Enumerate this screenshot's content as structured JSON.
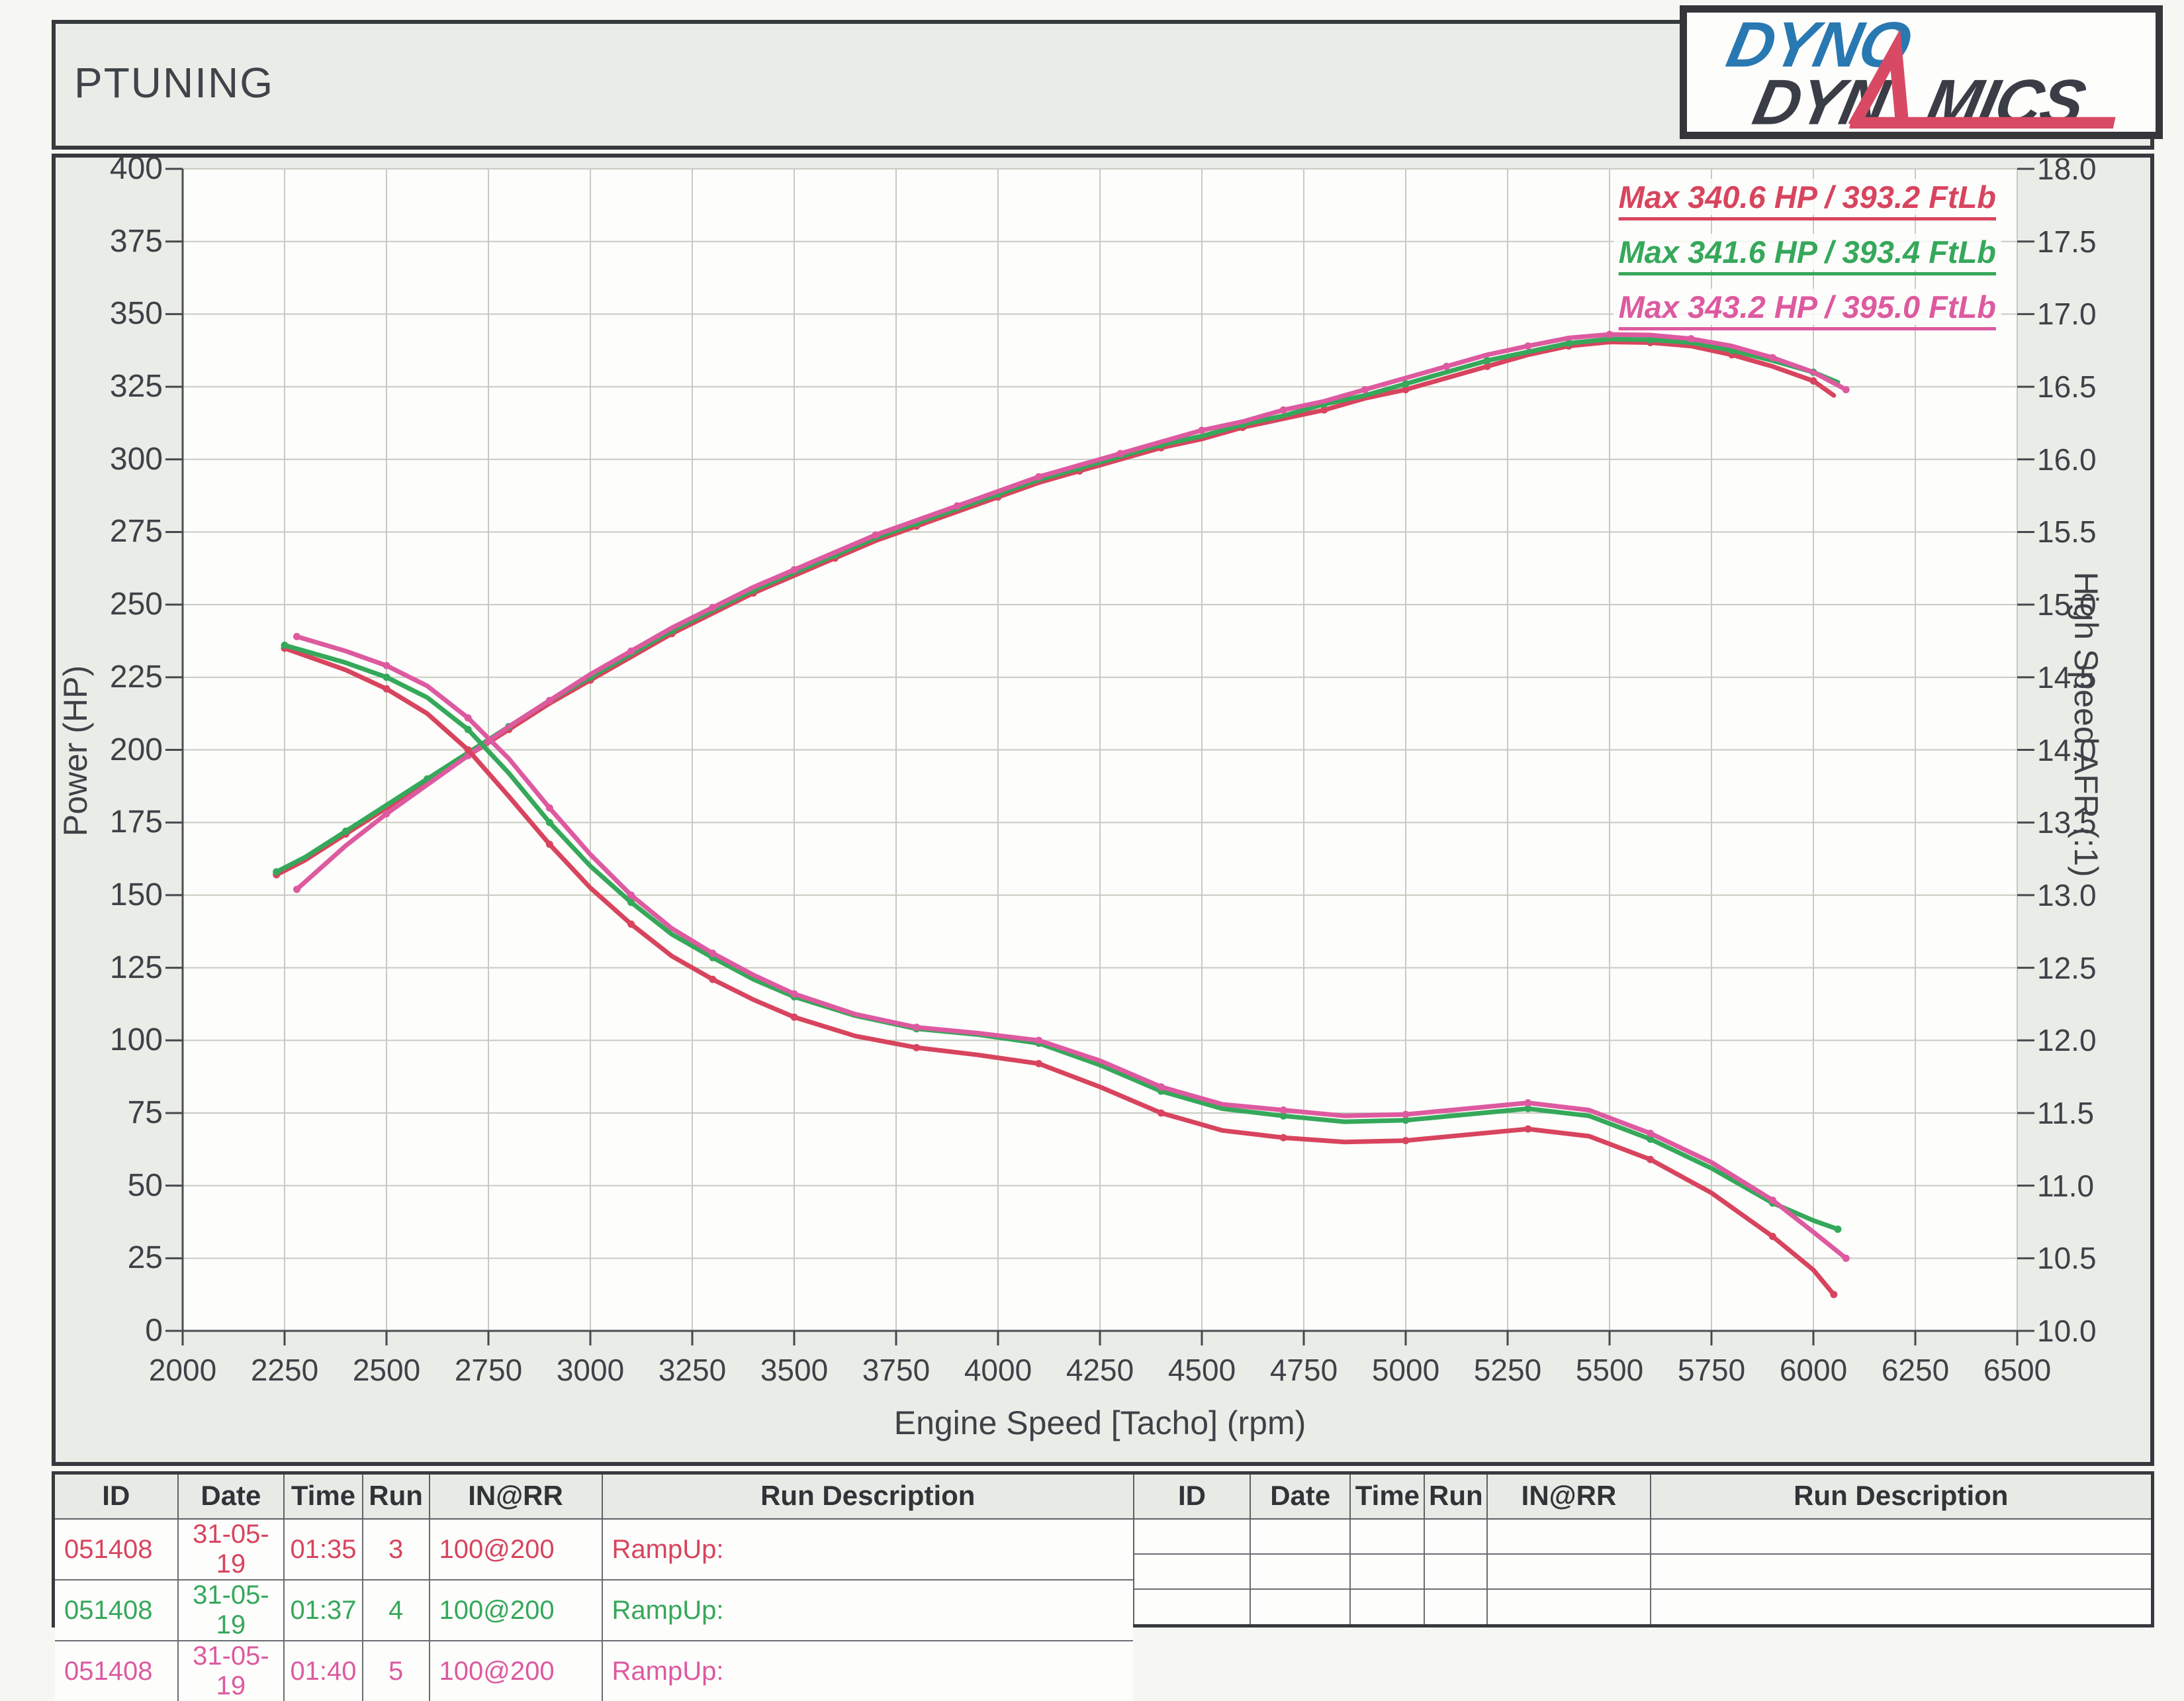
{
  "header": {
    "title": "PTUNING"
  },
  "logo": {
    "word_top": "DYNO",
    "word_bottom_left": "DYN",
    "word_bottom_right": "MICS",
    "color_blue": "#2878b2",
    "color_dark": "#3a3d45",
    "color_red": "#d84a63"
  },
  "chart_data": {
    "type": "line",
    "title": "",
    "xlabel": "Engine Speed [Tacho] (rpm)",
    "ylabel_left": "Power (HP)",
    "ylabel_right": "High Speed AFR (:1)",
    "xlim": [
      2000,
      6500
    ],
    "ylim_left": [
      0,
      400
    ],
    "ylim_right": [
      10.0,
      18.0
    ],
    "grid": true,
    "xticks": [
      2000,
      2250,
      2500,
      2750,
      3000,
      3250,
      3500,
      3750,
      4000,
      4250,
      4500,
      4750,
      5000,
      5250,
      5500,
      5750,
      6000,
      6250,
      6500
    ],
    "yticks_left": [
      0,
      25,
      50,
      75,
      100,
      125,
      150,
      175,
      200,
      225,
      250,
      275,
      300,
      325,
      350,
      375,
      400
    ],
    "yticks_right": [
      "10.0",
      "10.5",
      "11.0",
      "11.5",
      "12.0",
      "12.5",
      "13.0",
      "13.5",
      "14.0",
      "14.5",
      "15.0",
      "15.5",
      "16.0",
      "16.5",
      "17.0",
      "17.5",
      "18.0"
    ],
    "legend_position": "top-right",
    "legend": [
      {
        "label": "Max 340.6 HP  / 393.2 FtLb",
        "color": "#d8445e"
      },
      {
        "label": "Max 341.6 HP  / 393.4 FtLb",
        "color": "#35a85a"
      },
      {
        "label": "Max 343.2 HP  / 395.0 FtLb",
        "color": "#dd5aa0"
      }
    ],
    "series": [
      {
        "name": "power-run-3",
        "axis": "left",
        "color": "#d8445e",
        "points": [
          [
            2230,
            157
          ],
          [
            2300,
            162
          ],
          [
            2400,
            171
          ],
          [
            2500,
            180
          ],
          [
            2600,
            189
          ],
          [
            2700,
            198
          ],
          [
            2800,
            207
          ],
          [
            2900,
            216
          ],
          [
            3000,
            224
          ],
          [
            3100,
            232
          ],
          [
            3200,
            240
          ],
          [
            3300,
            247
          ],
          [
            3400,
            254
          ],
          [
            3500,
            260
          ],
          [
            3600,
            266
          ],
          [
            3700,
            272
          ],
          [
            3800,
            277
          ],
          [
            3900,
            282
          ],
          [
            4000,
            287
          ],
          [
            4100,
            292
          ],
          [
            4200,
            296
          ],
          [
            4300,
            300
          ],
          [
            4400,
            304
          ],
          [
            4500,
            307
          ],
          [
            4600,
            311
          ],
          [
            4700,
            314
          ],
          [
            4800,
            317
          ],
          [
            4900,
            321
          ],
          [
            5000,
            324
          ],
          [
            5100,
            328
          ],
          [
            5200,
            332
          ],
          [
            5300,
            336
          ],
          [
            5400,
            339
          ],
          [
            5500,
            340.4
          ],
          [
            5600,
            340.2
          ],
          [
            5700,
            339
          ],
          [
            5800,
            336
          ],
          [
            5900,
            332
          ],
          [
            6000,
            327
          ],
          [
            6050,
            322
          ]
        ]
      },
      {
        "name": "power-run-4",
        "axis": "left",
        "color": "#35a85a",
        "points": [
          [
            2230,
            158
          ],
          [
            2300,
            163
          ],
          [
            2400,
            172
          ],
          [
            2500,
            181
          ],
          [
            2600,
            190
          ],
          [
            2700,
            199
          ],
          [
            2800,
            208
          ],
          [
            2900,
            217
          ],
          [
            3000,
            225
          ],
          [
            3100,
            233
          ],
          [
            3200,
            241
          ],
          [
            3300,
            248
          ],
          [
            3400,
            255
          ],
          [
            3500,
            261
          ],
          [
            3600,
            267
          ],
          [
            3700,
            273
          ],
          [
            3800,
            278
          ],
          [
            3900,
            283
          ],
          [
            4000,
            288
          ],
          [
            4100,
            293
          ],
          [
            4200,
            297
          ],
          [
            4300,
            301
          ],
          [
            4400,
            305
          ],
          [
            4500,
            308
          ],
          [
            4600,
            312
          ],
          [
            4700,
            315
          ],
          [
            4800,
            319
          ],
          [
            4900,
            322
          ],
          [
            5000,
            326
          ],
          [
            5100,
            330
          ],
          [
            5200,
            334
          ],
          [
            5300,
            337
          ],
          [
            5400,
            340
          ],
          [
            5500,
            341.4
          ],
          [
            5600,
            341.2
          ],
          [
            5700,
            340.2
          ],
          [
            5800,
            337.5
          ],
          [
            5900,
            334
          ],
          [
            6000,
            330
          ],
          [
            6060,
            326.5
          ]
        ]
      },
      {
        "name": "power-run-5",
        "axis": "left",
        "color": "#dd5aa0",
        "points": [
          [
            2280,
            152
          ],
          [
            2400,
            167
          ],
          [
            2500,
            178
          ],
          [
            2600,
            188
          ],
          [
            2700,
            198
          ],
          [
            2800,
            208
          ],
          [
            2900,
            217
          ],
          [
            3000,
            226
          ],
          [
            3100,
            234
          ],
          [
            3200,
            242
          ],
          [
            3300,
            249
          ],
          [
            3400,
            256
          ],
          [
            3500,
            262
          ],
          [
            3600,
            268
          ],
          [
            3700,
            274
          ],
          [
            3800,
            279
          ],
          [
            3900,
            284
          ],
          [
            4000,
            289
          ],
          [
            4100,
            294
          ],
          [
            4200,
            298
          ],
          [
            4300,
            302
          ],
          [
            4400,
            306
          ],
          [
            4500,
            310
          ],
          [
            4600,
            313
          ],
          [
            4700,
            317
          ],
          [
            4800,
            320
          ],
          [
            4900,
            324
          ],
          [
            5000,
            328
          ],
          [
            5100,
            332
          ],
          [
            5200,
            336
          ],
          [
            5300,
            339
          ],
          [
            5400,
            341.8
          ],
          [
            5500,
            343
          ],
          [
            5600,
            342.8
          ],
          [
            5700,
            341.5
          ],
          [
            5800,
            339
          ],
          [
            5900,
            335
          ],
          [
            6000,
            330
          ],
          [
            6080,
            324
          ]
        ]
      },
      {
        "name": "afr-run-3",
        "axis": "right",
        "color": "#d8445e",
        "points": [
          [
            2250,
            14.7
          ],
          [
            2400,
            14.55
          ],
          [
            2500,
            14.42
          ],
          [
            2600,
            14.25
          ],
          [
            2700,
            14.0
          ],
          [
            2800,
            13.68
          ],
          [
            2900,
            13.35
          ],
          [
            3000,
            13.05
          ],
          [
            3100,
            12.8
          ],
          [
            3200,
            12.58
          ],
          [
            3300,
            12.42
          ],
          [
            3400,
            12.28
          ],
          [
            3500,
            12.16
          ],
          [
            3650,
            12.03
          ],
          [
            3800,
            11.95
          ],
          [
            3950,
            11.9
          ],
          [
            4100,
            11.84
          ],
          [
            4250,
            11.68
          ],
          [
            4400,
            11.5
          ],
          [
            4550,
            11.38
          ],
          [
            4700,
            11.33
          ],
          [
            4850,
            11.3
          ],
          [
            5000,
            11.31
          ],
          [
            5150,
            11.35
          ],
          [
            5300,
            11.39
          ],
          [
            5450,
            11.34
          ],
          [
            5600,
            11.18
          ],
          [
            5750,
            10.95
          ],
          [
            5900,
            10.65
          ],
          [
            6000,
            10.42
          ],
          [
            6050,
            10.25
          ]
        ]
      },
      {
        "name": "afr-run-4",
        "axis": "right",
        "color": "#35a85a",
        "points": [
          [
            2250,
            14.72
          ],
          [
            2400,
            14.6
          ],
          [
            2500,
            14.5
          ],
          [
            2600,
            14.36
          ],
          [
            2700,
            14.14
          ],
          [
            2800,
            13.84
          ],
          [
            2900,
            13.5
          ],
          [
            3000,
            13.2
          ],
          [
            3100,
            12.95
          ],
          [
            3200,
            12.73
          ],
          [
            3300,
            12.57
          ],
          [
            3400,
            12.42
          ],
          [
            3500,
            12.3
          ],
          [
            3650,
            12.17
          ],
          [
            3800,
            12.08
          ],
          [
            3950,
            12.04
          ],
          [
            4100,
            11.98
          ],
          [
            4250,
            11.83
          ],
          [
            4400,
            11.65
          ],
          [
            4550,
            11.53
          ],
          [
            4700,
            11.48
          ],
          [
            4850,
            11.44
          ],
          [
            5000,
            11.45
          ],
          [
            5150,
            11.49
          ],
          [
            5300,
            11.53
          ],
          [
            5450,
            11.48
          ],
          [
            5600,
            11.32
          ],
          [
            5750,
            11.12
          ],
          [
            5900,
            10.88
          ],
          [
            6000,
            10.76
          ],
          [
            6060,
            10.7
          ]
        ]
      },
      {
        "name": "afr-run-5",
        "axis": "right",
        "color": "#dd5aa0",
        "points": [
          [
            2280,
            14.78
          ],
          [
            2400,
            14.68
          ],
          [
            2500,
            14.58
          ],
          [
            2600,
            14.44
          ],
          [
            2700,
            14.22
          ],
          [
            2800,
            13.94
          ],
          [
            2900,
            13.6
          ],
          [
            3000,
            13.28
          ],
          [
            3100,
            13.0
          ],
          [
            3200,
            12.77
          ],
          [
            3300,
            12.6
          ],
          [
            3400,
            12.45
          ],
          [
            3500,
            12.32
          ],
          [
            3650,
            12.18
          ],
          [
            3800,
            12.09
          ],
          [
            3950,
            12.05
          ],
          [
            4100,
            12.0
          ],
          [
            4250,
            11.86
          ],
          [
            4400,
            11.68
          ],
          [
            4550,
            11.56
          ],
          [
            4700,
            11.52
          ],
          [
            4850,
            11.48
          ],
          [
            5000,
            11.49
          ],
          [
            5150,
            11.53
          ],
          [
            5300,
            11.57
          ],
          [
            5450,
            11.52
          ],
          [
            5600,
            11.36
          ],
          [
            5750,
            11.16
          ],
          [
            5900,
            10.9
          ],
          [
            6000,
            10.68
          ],
          [
            6080,
            10.5
          ]
        ]
      }
    ]
  },
  "run_table": {
    "columns": [
      "ID",
      "Date",
      "Time",
      "Run",
      "IN@RR",
      "Run Description"
    ],
    "left_rows": [
      {
        "color": "#d8445e",
        "cells": [
          "051408",
          "31-05-19",
          "01:35",
          "3",
          "100@200",
          "RampUp:"
        ]
      },
      {
        "color": "#35a85a",
        "cells": [
          "051408",
          "31-05-19",
          "01:37",
          "4",
          "100@200",
          "RampUp:"
        ]
      },
      {
        "color": "#dd5aa0",
        "cells": [
          "051408",
          "31-05-19",
          "01:40",
          "5",
          "100@200",
          "RampUp:"
        ]
      }
    ],
    "right_rows": [
      {
        "color": "#3d4247",
        "cells": [
          "",
          "",
          "",
          "",
          "",
          ""
        ]
      },
      {
        "color": "#3d4247",
        "cells": [
          "",
          "",
          "",
          "",
          "",
          ""
        ]
      },
      {
        "color": "#3d4247",
        "cells": [
          "",
          "",
          "",
          "",
          "",
          ""
        ]
      }
    ]
  }
}
